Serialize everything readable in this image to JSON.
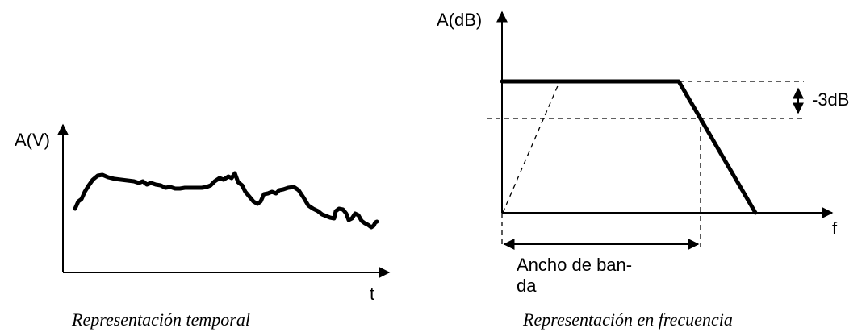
{
  "temporal": {
    "y_axis_label": "A(V)",
    "x_axis_label": "t",
    "caption": "Representación temporal"
  },
  "frequency": {
    "y_axis_label": "A(dB)",
    "x_axis_label": "f",
    "attenuation_label": "-3dB",
    "bandwidth_label_line1": "Ancho de ban-",
    "bandwidth_label_line2": "da",
    "caption": "Representación en frecuencia"
  },
  "colors": {
    "stroke": "#000000",
    "background": "#ffffff"
  }
}
